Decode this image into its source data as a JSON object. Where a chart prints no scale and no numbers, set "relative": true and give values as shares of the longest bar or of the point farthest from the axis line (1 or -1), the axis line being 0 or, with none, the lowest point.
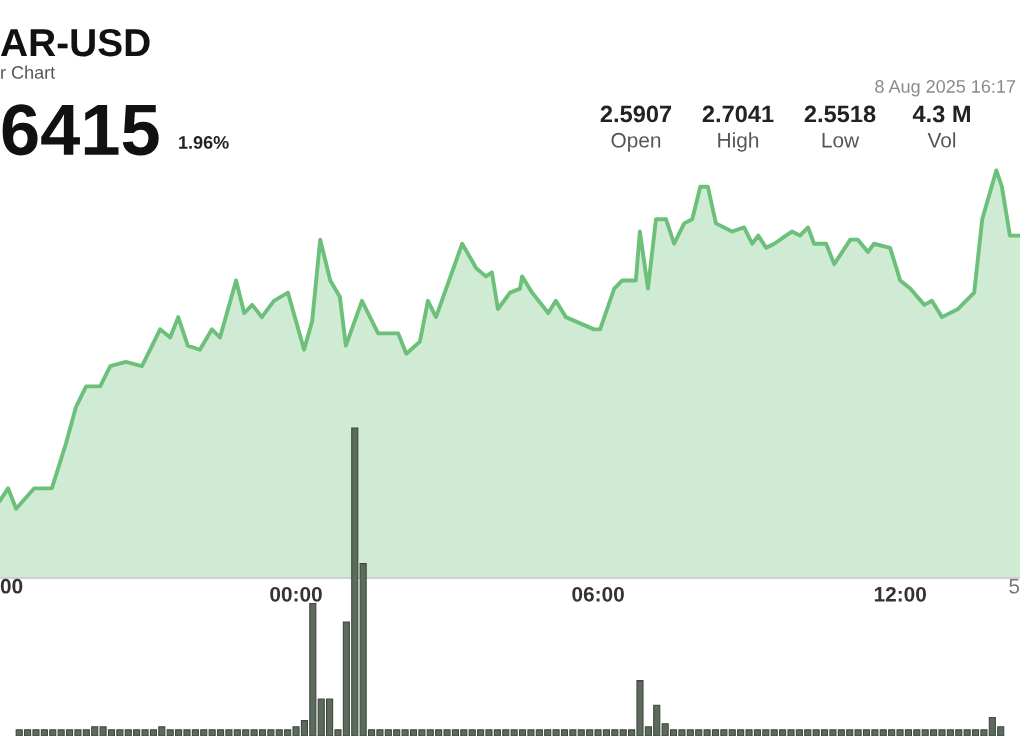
{
  "chart_data": [
    {
      "type": "area",
      "title": "AR-USD",
      "subtitle": "r Chart",
      "relative": true,
      "annotations": [
        "6415",
        "1.96%",
        "2.5907",
        "Open",
        "2.7041",
        "High",
        "2.5518",
        "Low",
        "4.3 M",
        "Vol",
        "8 Aug 2025 16:17",
        "00",
        "5"
      ],
      "xlim": [
        -5.88,
        14.38
      ],
      "xticks": [
        {
          "value": 0,
          "label": "00:00"
        },
        {
          "value": 6,
          "label": "06:00"
        },
        {
          "value": 12,
          "label": "12:00"
        }
      ],
      "tick_labels": "x",
      "series": [
        {
          "color": "#6cc07a",
          "x": [
            -5.88,
            -5.72,
            -5.56,
            -5.2,
            -4.85,
            -4.57,
            -4.37,
            -4.17,
            -3.89,
            -3.69,
            -3.38,
            -3.06,
            -2.7,
            -2.5,
            -2.34,
            -2.15,
            -1.91,
            -1.67,
            -1.51,
            -1.19,
            -1.03,
            -0.87,
            -0.68,
            -0.44,
            -0.16,
            0.16,
            0.32,
            0.48,
            0.68,
            0.87,
            0.99,
            1.31,
            1.63,
            1.83,
            2.03,
            2.19,
            2.46,
            2.62,
            2.78,
            3.3,
            3.58,
            3.77,
            3.89,
            4.01,
            4.25,
            4.45,
            4.49,
            4.69,
            5.01,
            5.16,
            5.36,
            5.92,
            6.04,
            6.32,
            6.48,
            6.75,
            6.83,
            6.99,
            7.15,
            7.35,
            7.51,
            7.71,
            7.87,
            8.03,
            8.18,
            8.34,
            8.66,
            8.9,
            9.06,
            9.18,
            9.34,
            9.5,
            9.73,
            9.85,
            10.01,
            10.17,
            10.29,
            10.53,
            10.69,
            11.01,
            11.16,
            11.36,
            11.48,
            11.8,
            12.0,
            12.2,
            12.48,
            12.63,
            12.83,
            13.15,
            13.47,
            13.63,
            13.91,
            14.02,
            14.18,
            14.38
          ],
          "values": [
            0.19,
            0.22,
            0.17,
            0.22,
            0.22,
            0.33,
            0.42,
            0.47,
            0.47,
            0.52,
            0.53,
            0.52,
            0.61,
            0.59,
            0.64,
            0.57,
            0.56,
            0.61,
            0.59,
            0.73,
            0.65,
            0.67,
            0.64,
            0.68,
            0.7,
            0.56,
            0.63,
            0.83,
            0.73,
            0.69,
            0.57,
            0.68,
            0.6,
            0.6,
            0.6,
            0.55,
            0.58,
            0.68,
            0.64,
            0.82,
            0.76,
            0.74,
            0.75,
            0.66,
            0.7,
            0.71,
            0.74,
            0.7,
            0.65,
            0.68,
            0.64,
            0.61,
            0.61,
            0.71,
            0.73,
            0.73,
            0.85,
            0.71,
            0.88,
            0.88,
            0.82,
            0.87,
            0.88,
            0.96,
            0.96,
            0.87,
            0.85,
            0.86,
            0.82,
            0.84,
            0.81,
            0.82,
            0.84,
            0.85,
            0.84,
            0.86,
            0.82,
            0.82,
            0.77,
            0.83,
            0.83,
            0.8,
            0.82,
            0.81,
            0.73,
            0.71,
            0.67,
            0.68,
            0.64,
            0.66,
            0.7,
            0.88,
            1,
            0.96,
            0.84,
            0.84
          ]
        }
      ]
    },
    {
      "type": "bar",
      "relative": true,
      "tick_labels": false,
      "color": "#5c6b5c",
      "categories": [
        null,
        null,
        null,
        null,
        null,
        null,
        null,
        null,
        null,
        null,
        null,
        null,
        null,
        null,
        null,
        null,
        null,
        null,
        null,
        null,
        null,
        null,
        null,
        null,
        null,
        null,
        null,
        null,
        null,
        null,
        null,
        null,
        null,
        null,
        null,
        null,
        null,
        null,
        null,
        null,
        null,
        null,
        null,
        null,
        null,
        null,
        null,
        null,
        null,
        null,
        null,
        null,
        null,
        null,
        null,
        null,
        null,
        null,
        null,
        null,
        null,
        null,
        null,
        null,
        null,
        null,
        null,
        null,
        null,
        null,
        null,
        null,
        null,
        null,
        null,
        null,
        null,
        null,
        null,
        null,
        null,
        null,
        null,
        null,
        null,
        null,
        null,
        null,
        null,
        null,
        null,
        null,
        null,
        null,
        null,
        null,
        null,
        null,
        null,
        null,
        null,
        null,
        null,
        null,
        null,
        null,
        null,
        null,
        null,
        null,
        null,
        null,
        null,
        null,
        null,
        null,
        null,
        null
      ],
      "values": [
        0.02,
        0.02,
        0.02,
        0.02,
        0.02,
        0.02,
        0.02,
        0.02,
        0.02,
        0.03,
        0.03,
        0.02,
        0.02,
        0.02,
        0.02,
        0.02,
        0.02,
        0.03,
        0.02,
        0.02,
        0.02,
        0.02,
        0.02,
        0.02,
        0.02,
        0.02,
        0.02,
        0.02,
        0.02,
        0.02,
        0.02,
        0.02,
        0.02,
        0.03,
        0.05,
        0.43,
        0.12,
        0.12,
        0.02,
        0.37,
        1,
        0.56,
        0.02,
        0.02,
        0.02,
        0.02,
        0.02,
        0.02,
        0.02,
        0.02,
        0.02,
        0.02,
        0.02,
        0.02,
        0.02,
        0.02,
        0.02,
        0.02,
        0.02,
        0.02,
        0.02,
        0.02,
        0.02,
        0.02,
        0.02,
        0.02,
        0.02,
        0.02,
        0.02,
        0.02,
        0.02,
        0.02,
        0.02,
        0.02,
        0.18,
        0.03,
        0.1,
        0.04,
        0.02,
        0.02,
        0.02,
        0.02,
        0.02,
        0.02,
        0.02,
        0.02,
        0.02,
        0.02,
        0.02,
        0.02,
        0.02,
        0.02,
        0.02,
        0.02,
        0.02,
        0.02,
        0.02,
        0.02,
        0.02,
        0.02,
        0.02,
        0.02,
        0.02,
        0.02,
        0.02,
        0.02,
        0.02,
        0.02,
        0.02,
        0.02,
        0.02,
        0.02,
        0.02,
        0.02,
        0.02,
        0.02,
        0.06,
        0.03
      ]
    }
  ]
}
